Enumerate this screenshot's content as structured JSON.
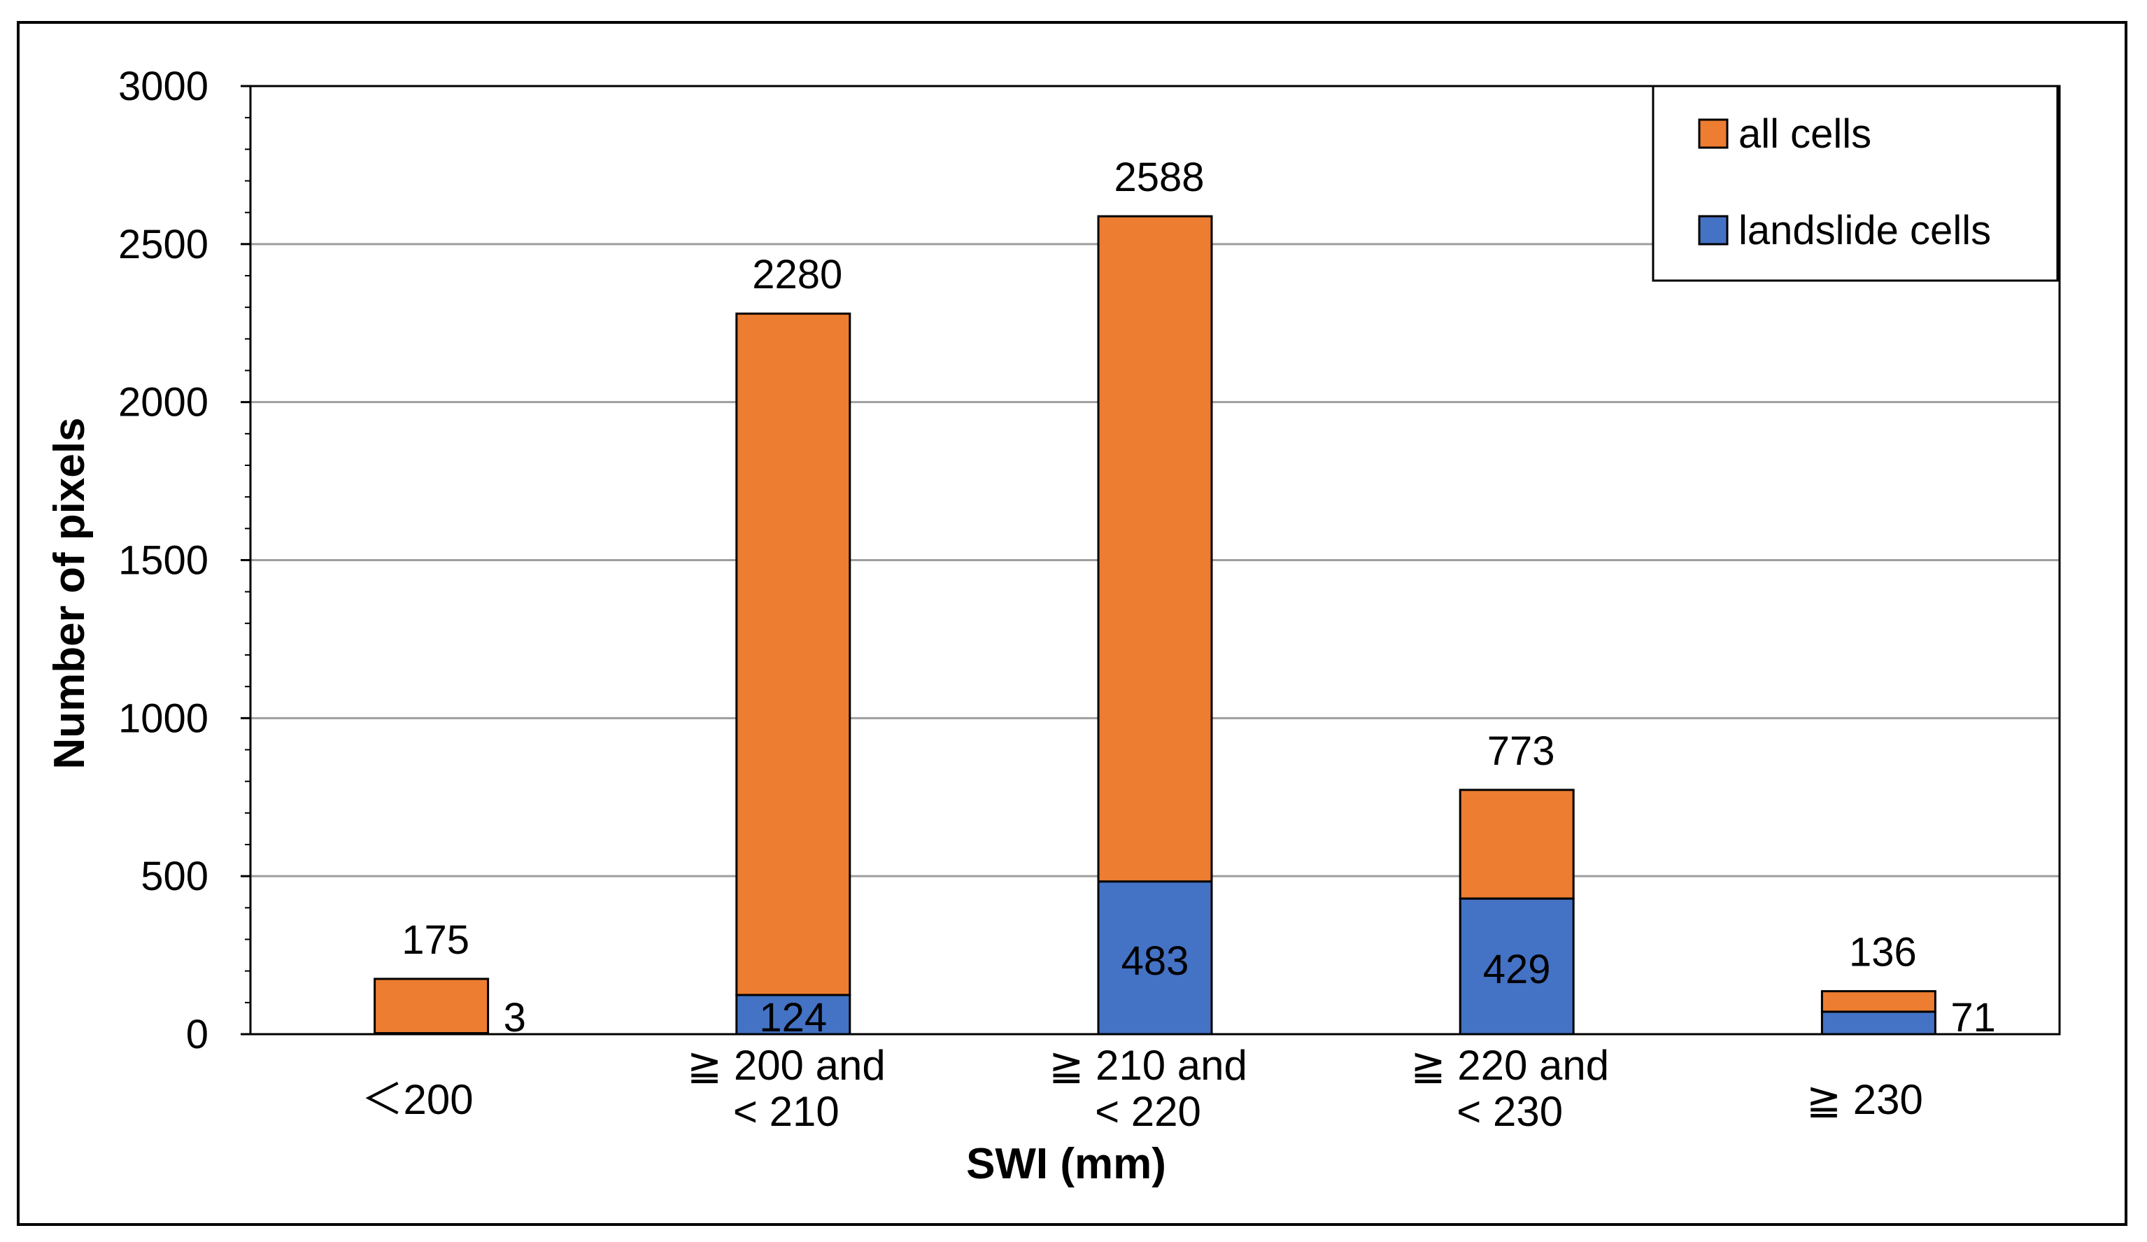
{
  "chart_data": {
    "type": "bar",
    "stacked": true,
    "title": "",
    "xlabel": "SWI (mm)",
    "ylabel": "Number of pixels",
    "ylim": [
      0,
      3000
    ],
    "yticks": [
      "0",
      "500",
      "1000",
      "1500",
      "2000",
      "2500",
      "3000"
    ],
    "ytick_values": [
      0,
      500,
      1000,
      1500,
      2000,
      2500,
      3000
    ],
    "categories": [
      [
        "＜200"
      ],
      [
        "≧ 200 and",
        "< 210"
      ],
      [
        "≧ 210 and",
        "< 220"
      ],
      [
        "≧ 220 and",
        "< 230"
      ],
      [
        "≧ 230"
      ]
    ],
    "series": [
      {
        "name": "landslide cells",
        "color": "#4472C4",
        "values": [
          3,
          124,
          483,
          429,
          71
        ],
        "labels": [
          "3",
          "124",
          "483",
          "429",
          "71"
        ]
      },
      {
        "name": "all cells",
        "color": "#ED7D31",
        "values": [
          175,
          2280,
          2588,
          773,
          136
        ],
        "labels": [
          "175",
          "2280",
          "2588",
          "773",
          "136"
        ]
      }
    ],
    "legend": {
      "position": "top-right",
      "entries": [
        {
          "name": "all cells",
          "color": "#ED7D31"
        },
        {
          "name": "landslide cells",
          "color": "#4472C4"
        }
      ]
    },
    "grid": true
  }
}
